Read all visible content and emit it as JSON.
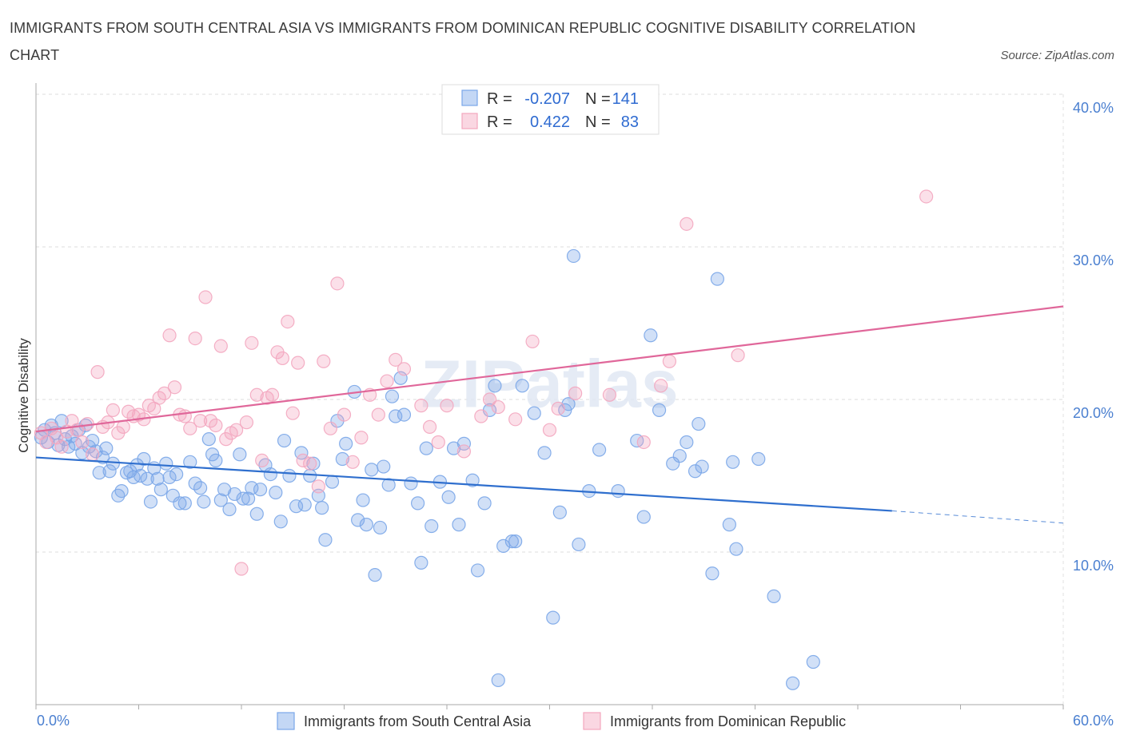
{
  "chart_data": {
    "type": "scatter",
    "title": "IMMIGRANTS FROM SOUTH CENTRAL ASIA VS IMMIGRANTS FROM DOMINICAN REPUBLIC COGNITIVE DISABILITY CORRELATION CHART",
    "source": "Source: ZipAtlas.com",
    "watermark": "ZIPatlas",
    "xlabel": "",
    "ylabel": "Cognitive Disability",
    "xlim": [
      0,
      60
    ],
    "ylim": [
      0,
      40
    ],
    "x_tick_labels": [
      "0.0%",
      "60.0%"
    ],
    "y_ticks": [
      10,
      20,
      30,
      40
    ],
    "y_tick_labels": [
      "10.0%",
      "20.0%",
      "30.0%",
      "40.0%"
    ],
    "legend_labels": {
      "r": "R =",
      "n": "N ="
    },
    "series": [
      {
        "name": "Immigrants from South Central Asia",
        "color": "#7aa6e8",
        "line_color": "#2f6fce",
        "R": "-0.207",
        "N": "141",
        "trend": {
          "x": [
            0,
            50
          ],
          "y": [
            16.2,
            12.7
          ],
          "dashed_to": [
            60,
            11.9
          ]
        },
        "points": [
          [
            0.3,
            17.5
          ],
          [
            0.5,
            18.0
          ],
          [
            0.7,
            17.2
          ],
          [
            0.9,
            18.3
          ],
          [
            1.1,
            17.8
          ],
          [
            1.3,
            17.0
          ],
          [
            1.5,
            18.6
          ],
          [
            1.7,
            17.4
          ],
          [
            1.9,
            16.9
          ],
          [
            2.1,
            17.6
          ],
          [
            2.3,
            17.1
          ],
          [
            2.5,
            18.0
          ],
          [
            2.7,
            16.5
          ],
          [
            2.9,
            18.3
          ],
          [
            3.1,
            16.9
          ],
          [
            3.3,
            17.3
          ],
          [
            3.5,
            16.6
          ],
          [
            3.7,
            15.2
          ],
          [
            3.9,
            16.2
          ],
          [
            4.1,
            16.8
          ],
          [
            4.3,
            15.3
          ],
          [
            4.5,
            15.8
          ],
          [
            4.8,
            13.7
          ],
          [
            5.0,
            14.0
          ],
          [
            5.3,
            15.2
          ],
          [
            5.5,
            15.3
          ],
          [
            5.7,
            14.9
          ],
          [
            5.9,
            15.7
          ],
          [
            6.1,
            15.0
          ],
          [
            6.3,
            16.1
          ],
          [
            6.5,
            14.8
          ],
          [
            6.7,
            13.3
          ],
          [
            6.9,
            15.5
          ],
          [
            7.1,
            14.8
          ],
          [
            7.3,
            14.1
          ],
          [
            7.6,
            15.8
          ],
          [
            7.8,
            14.9
          ],
          [
            8.0,
            13.7
          ],
          [
            8.2,
            15.1
          ],
          [
            8.4,
            13.2
          ],
          [
            8.7,
            13.2
          ],
          [
            9.0,
            15.9
          ],
          [
            9.3,
            14.5
          ],
          [
            9.6,
            14.2
          ],
          [
            9.8,
            13.3
          ],
          [
            10.1,
            17.4
          ],
          [
            10.3,
            16.4
          ],
          [
            10.5,
            16.0
          ],
          [
            10.8,
            13.4
          ],
          [
            11.0,
            14.1
          ],
          [
            11.3,
            12.8
          ],
          [
            11.6,
            13.8
          ],
          [
            11.9,
            16.4
          ],
          [
            12.1,
            13.5
          ],
          [
            12.4,
            13.5
          ],
          [
            12.6,
            14.2
          ],
          [
            12.9,
            12.5
          ],
          [
            13.1,
            14.1
          ],
          [
            13.4,
            15.7
          ],
          [
            13.7,
            15.1
          ],
          [
            14.0,
            13.9
          ],
          [
            14.3,
            12.0
          ],
          [
            14.5,
            17.3
          ],
          [
            14.8,
            15.0
          ],
          [
            15.2,
            13.0
          ],
          [
            15.5,
            16.5
          ],
          [
            15.7,
            13.1
          ],
          [
            16.0,
            15.0
          ],
          [
            16.2,
            15.8
          ],
          [
            16.5,
            13.7
          ],
          [
            16.7,
            12.9
          ],
          [
            16.9,
            10.8
          ],
          [
            17.3,
            14.6
          ],
          [
            17.6,
            18.6
          ],
          [
            17.9,
            16.1
          ],
          [
            18.1,
            17.1
          ],
          [
            18.6,
            20.5
          ],
          [
            18.8,
            12.1
          ],
          [
            19.1,
            13.4
          ],
          [
            19.3,
            11.8
          ],
          [
            19.6,
            15.4
          ],
          [
            19.8,
            8.5
          ],
          [
            20.1,
            11.6
          ],
          [
            20.3,
            15.6
          ],
          [
            20.6,
            14.4
          ],
          [
            20.8,
            20.2
          ],
          [
            21.0,
            18.9
          ],
          [
            21.3,
            21.4
          ],
          [
            21.5,
            19.0
          ],
          [
            21.9,
            14.5
          ],
          [
            22.3,
            13.2
          ],
          [
            22.5,
            9.3
          ],
          [
            22.8,
            16.8
          ],
          [
            23.1,
            11.7
          ],
          [
            23.6,
            14.6
          ],
          [
            24.1,
            13.6
          ],
          [
            24.4,
            16.8
          ],
          [
            24.7,
            11.8
          ],
          [
            25.0,
            17.1
          ],
          [
            25.5,
            14.7
          ],
          [
            25.8,
            8.8
          ],
          [
            26.2,
            13.2
          ],
          [
            26.5,
            19.3
          ],
          [
            26.8,
            20.9
          ],
          [
            27.0,
            1.6
          ],
          [
            27.3,
            10.4
          ],
          [
            27.8,
            10.7
          ],
          [
            28.0,
            10.7
          ],
          [
            28.4,
            20.9
          ],
          [
            29.1,
            19.1
          ],
          [
            29.7,
            16.5
          ],
          [
            30.2,
            5.7
          ],
          [
            30.6,
            12.6
          ],
          [
            30.9,
            19.3
          ],
          [
            31.1,
            19.7
          ],
          [
            31.4,
            29.4
          ],
          [
            31.7,
            10.5
          ],
          [
            32.3,
            14.0
          ],
          [
            32.9,
            16.7
          ],
          [
            34.0,
            14.0
          ],
          [
            35.1,
            17.3
          ],
          [
            35.5,
            12.3
          ],
          [
            35.9,
            24.2
          ],
          [
            36.4,
            19.3
          ],
          [
            37.2,
            15.8
          ],
          [
            37.6,
            16.3
          ],
          [
            38.0,
            17.2
          ],
          [
            38.5,
            15.3
          ],
          [
            38.7,
            18.4
          ],
          [
            38.9,
            15.6
          ],
          [
            39.5,
            8.6
          ],
          [
            39.8,
            27.9
          ],
          [
            40.5,
            11.8
          ],
          [
            40.7,
            15.9
          ],
          [
            40.9,
            10.2
          ],
          [
            42.2,
            16.1
          ],
          [
            43.1,
            7.1
          ],
          [
            44.2,
            1.4
          ],
          [
            45.4,
            2.8
          ]
        ]
      },
      {
        "name": "Immigrants from Dominican Republic",
        "color": "#f3a6bf",
        "line_color": "#e0679a",
        "R": "0.422",
        "N": "83",
        "trend": {
          "x": [
            0,
            60
          ],
          "y": [
            17.9,
            26.1
          ]
        },
        "points": [
          [
            0.3,
            17.8
          ],
          [
            0.6,
            17.2
          ],
          [
            0.9,
            18.1
          ],
          [
            1.2,
            17.5
          ],
          [
            1.5,
            16.9
          ],
          [
            1.8,
            17.9
          ],
          [
            2.1,
            18.6
          ],
          [
            2.4,
            18.0
          ],
          [
            2.7,
            17.2
          ],
          [
            3.0,
            18.4
          ],
          [
            3.3,
            16.4
          ],
          [
            3.6,
            21.8
          ],
          [
            3.9,
            18.2
          ],
          [
            4.2,
            18.5
          ],
          [
            4.5,
            19.3
          ],
          [
            4.8,
            17.8
          ],
          [
            5.1,
            18.2
          ],
          [
            5.4,
            19.2
          ],
          [
            5.7,
            18.9
          ],
          [
            6.0,
            19.0
          ],
          [
            6.3,
            18.7
          ],
          [
            6.6,
            19.6
          ],
          [
            6.9,
            19.4
          ],
          [
            7.2,
            20.1
          ],
          [
            7.5,
            20.4
          ],
          [
            7.8,
            24.2
          ],
          [
            8.1,
            20.8
          ],
          [
            8.4,
            19.0
          ],
          [
            8.7,
            18.9
          ],
          [
            9.0,
            18.1
          ],
          [
            9.3,
            24.0
          ],
          [
            9.6,
            18.6
          ],
          [
            9.9,
            26.7
          ],
          [
            10.2,
            18.6
          ],
          [
            10.5,
            18.3
          ],
          [
            10.8,
            23.5
          ],
          [
            11.1,
            17.4
          ],
          [
            11.4,
            17.8
          ],
          [
            11.7,
            18.0
          ],
          [
            12.0,
            8.9
          ],
          [
            12.3,
            18.5
          ],
          [
            12.6,
            23.7
          ],
          [
            12.9,
            20.3
          ],
          [
            13.2,
            16.0
          ],
          [
            13.5,
            20.1
          ],
          [
            13.8,
            20.3
          ],
          [
            14.1,
            23.1
          ],
          [
            14.4,
            22.7
          ],
          [
            14.7,
            25.1
          ],
          [
            15.0,
            19.1
          ],
          [
            15.3,
            22.4
          ],
          [
            15.6,
            16.0
          ],
          [
            16.0,
            15.8
          ],
          [
            16.5,
            14.3
          ],
          [
            16.8,
            22.5
          ],
          [
            17.2,
            18.1
          ],
          [
            17.6,
            27.6
          ],
          [
            18.0,
            19.0
          ],
          [
            18.5,
            15.9
          ],
          [
            19.0,
            17.5
          ],
          [
            19.5,
            20.3
          ],
          [
            20.0,
            19.0
          ],
          [
            20.5,
            21.2
          ],
          [
            21.0,
            22.6
          ],
          [
            21.5,
            22.0
          ],
          [
            22.5,
            19.6
          ],
          [
            23.0,
            18.2
          ],
          [
            23.5,
            17.2
          ],
          [
            24.0,
            19.6
          ],
          [
            25.0,
            16.6
          ],
          [
            26.0,
            18.9
          ],
          [
            26.5,
            20.0
          ],
          [
            27.0,
            19.5
          ],
          [
            28.0,
            18.7
          ],
          [
            29.0,
            23.8
          ],
          [
            30.0,
            18.0
          ],
          [
            30.5,
            19.4
          ],
          [
            31.5,
            20.4
          ],
          [
            33.5,
            20.3
          ],
          [
            35.5,
            17.2
          ],
          [
            36.5,
            20.9
          ],
          [
            37.0,
            22.5
          ],
          [
            38.0,
            31.5
          ],
          [
            41.0,
            22.9
          ],
          [
            52.0,
            33.3
          ]
        ]
      }
    ]
  }
}
